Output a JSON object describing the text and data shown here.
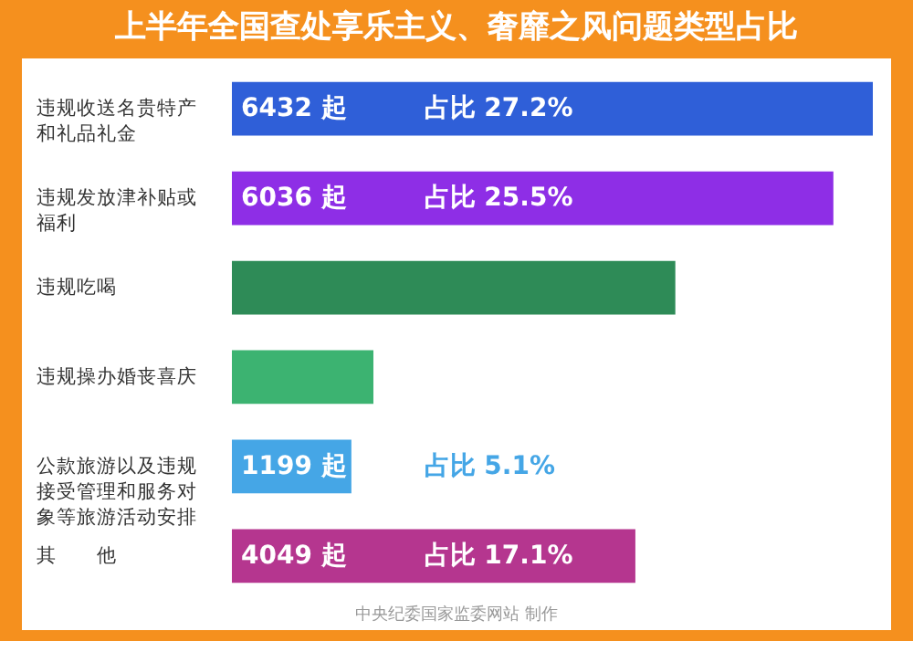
{
  "chart_data": {
    "type": "bar",
    "orientation": "horizontal",
    "title": "上半年全国查处享乐主义、奢靡之风问题类型占比",
    "categories": [
      "违规收送名贵特产和礼品礼金",
      "违规发放津补贴或福利",
      "违规吃喝",
      "违规操办婚丧喜庆",
      "公款旅游以及违规接受管理和服务对象等旅游活动安排",
      "其　　他"
    ],
    "values": [
      6432,
      6036,
      4450,
      1420,
      1199,
      4049
    ],
    "colors": [
      "#2f5fd8",
      "#8e2ee6",
      "#2e8b57",
      "#3cb371",
      "#45a6e6",
      "#b5368f"
    ],
    "value_labels": [
      "6432 起",
      "6036 起",
      null,
      null,
      "1199 起",
      "4049 起"
    ],
    "annotations": [
      "占比 27.2%",
      "占比 25.5%",
      "占比 5.1%",
      "占比 17.1%",
      "中央纪委国家监委网站 制作"
    ]
  }
}
